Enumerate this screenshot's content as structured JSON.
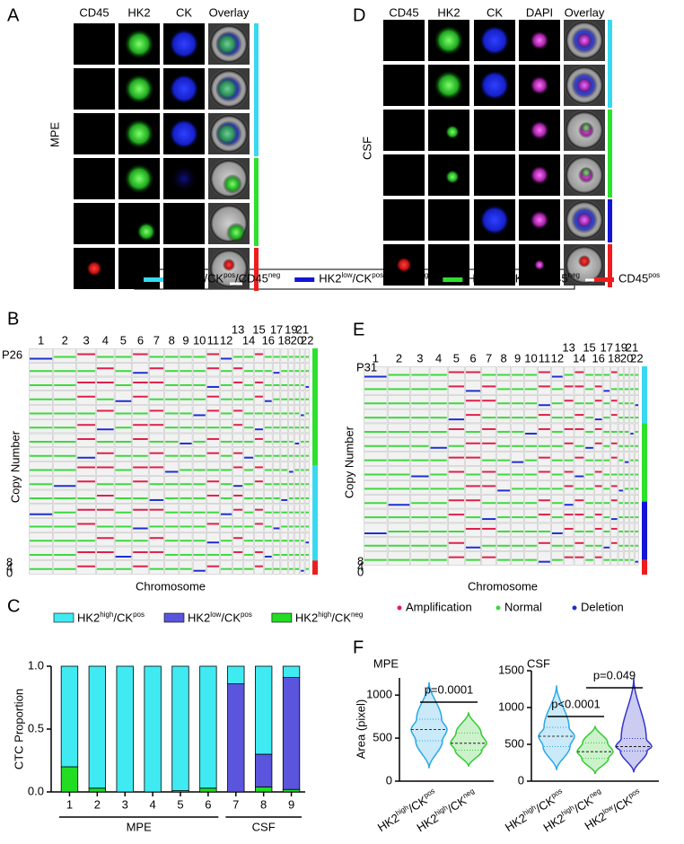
{
  "letters": [
    "A",
    "B",
    "C",
    "D",
    "E",
    "F"
  ],
  "panel_a": {
    "columns": [
      "CD45",
      "HK2",
      "CK",
      "Overlay"
    ],
    "sample": "MPE"
  },
  "panel_d": {
    "columns": [
      "CD45",
      "HK2",
      "CK",
      "DAPI",
      "Overlay"
    ],
    "sample": "CSF"
  },
  "cell_legend": [
    {
      "label": "HK2high/CKpos/CD45neg",
      "color": "#38d9f0"
    },
    {
      "label": "HK2low/CKpos/CD45neg",
      "color": "#1414d6"
    },
    {
      "label": "HK2high/CKneg/CD45neg",
      "color": "#2ee02e"
    },
    {
      "label": "CD45pos",
      "color": "#ee1c1c"
    }
  ],
  "panel_b": {
    "patient": "P26",
    "ylabel": "Copy Number",
    "xlabel": "Chromosome",
    "chromosomes": [
      "1",
      "2",
      "3",
      "4",
      "5",
      "6",
      "7",
      "8",
      "9",
      "10",
      "11",
      "12",
      "13",
      "14",
      "15",
      "16",
      "17",
      "18",
      "19",
      "20",
      "21",
      "22"
    ],
    "cn_ticks": [
      "8",
      "4",
      "0"
    ]
  },
  "panel_e": {
    "patient": "P31",
    "ylabel": "Copy Number",
    "xlabel": "Chromosome",
    "chromosomes": [
      "1",
      "2",
      "3",
      "4",
      "5",
      "6",
      "7",
      "8",
      "9",
      "10",
      "11",
      "12",
      "13",
      "14",
      "15",
      "16",
      "17",
      "18",
      "19",
      "20",
      "21",
      "22"
    ],
    "cn_ticks": [
      "8",
      "4",
      "0"
    ],
    "legend": [
      {
        "label": "Amplification",
        "color": "#e0204a"
      },
      {
        "label": "Normal",
        "color": "#3ed83e"
      },
      {
        "label": "Deletion",
        "color": "#1e2fd0"
      }
    ]
  },
  "chart_data": [
    {
      "type": "stacked_bar",
      "ylabel": "CTC Proportion",
      "categories": [
        "1",
        "2",
        "3",
        "4",
        "5",
        "6",
        "7",
        "8",
        "9"
      ],
      "groups": [
        "MPE",
        "CSF"
      ],
      "ylim": [
        0,
        1
      ],
      "yticks": [
        {
          "value": 0,
          "label": "0.0"
        },
        {
          "value": 0.5,
          "label": "0.5"
        },
        {
          "value": 1,
          "label": "1.0"
        }
      ],
      "series": [
        {
          "name": "HK2high/CKpos",
          "color": "#40eaf2",
          "values": [
            0.8,
            0.97,
            1,
            1,
            0.99,
            0.97,
            0.14,
            0.7,
            0.09
          ]
        },
        {
          "name": "HK2low/CKpos",
          "color": "#5a55dc",
          "values": [
            0,
            0,
            0,
            0,
            0,
            0,
            0.86,
            0.26,
            0.89
          ]
        },
        {
          "name": "HK2high/CKneg",
          "color": "#22dd22",
          "values": [
            0.2,
            0.03,
            0,
            0,
            0.01,
            0.03,
            0,
            0.04,
            0.02
          ]
        }
      ]
    },
    {
      "type": "violin",
      "title": "MPE",
      "ylabel": "Area (pixel)",
      "categories": [
        "HK2high/CKpos",
        "HK2high/CKneg"
      ],
      "colors": [
        "#2aa8e8",
        "#33cc33"
      ],
      "ylim": [
        0,
        1200
      ],
      "yticks": [
        0,
        500,
        1000
      ],
      "min": [
        150,
        170
      ],
      "q1": [
        470,
        360
      ],
      "median": [
        600,
        440
      ],
      "q3": [
        720,
        560
      ],
      "max": [
        1150,
        800
      ],
      "annotations": [
        "p=0.0001"
      ]
    },
    {
      "type": "violin",
      "title": "CSF",
      "categories": [
        "HK2high/CKpos",
        "HK2high/CKneg",
        "HK2low/CKpos"
      ],
      "colors": [
        "#2aa8e8",
        "#33cc33",
        "#3434cc"
      ],
      "ylim": [
        0,
        1500
      ],
      "yticks": [
        0,
        500,
        1000,
        1500
      ],
      "min": [
        150,
        100,
        120
      ],
      "q1": [
        470,
        310,
        410
      ],
      "median": [
        610,
        400,
        470
      ],
      "q3": [
        730,
        520,
        580
      ],
      "max": [
        1300,
        750,
        1400
      ],
      "annotations": [
        "p<0.0001",
        "p=0.049"
      ]
    }
  ]
}
